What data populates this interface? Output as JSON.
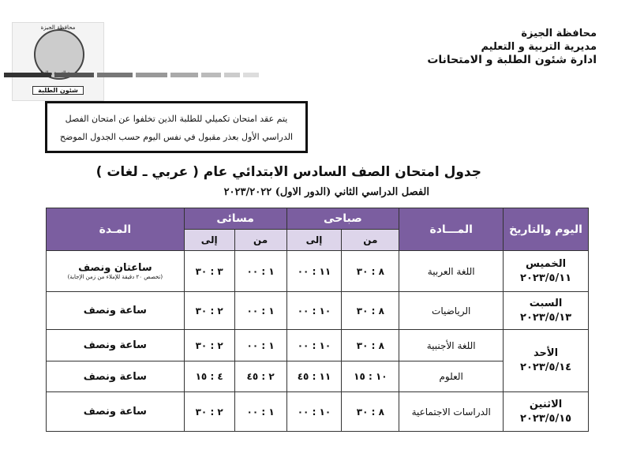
{
  "header": {
    "line1": "محافظة الجيزة",
    "line2": "مديرية التربية و التعليم",
    "line3": "ادارة شئون الطلبة و الامتحانات"
  },
  "logo": {
    "top": "محافظة الجيزة",
    "middle": "مديرية التربية و التعليم",
    "bottom": "شئون الطلبة"
  },
  "notice": {
    "line1": "يتم عقد امتحان تكميلي للطلبة الذين تخلفوا عن امتحان الفصل",
    "line2": "الدراسي الأول بعذر مقبول في نفس اليوم حسب الجدول الموضح"
  },
  "title": "جدول امتحان الصف السادس الابتدائي عام ( عربي ـ لغات )",
  "subtitle": "الفصل الدراسي الثاني (الدور الاول) ٢٠٢٣/٢٠٢٢",
  "table": {
    "headers": {
      "day": "اليوم والتاريخ",
      "subject": "المـــادة",
      "morning": "صباحى",
      "evening": "مسائى",
      "from": "من",
      "to": "إلى",
      "duration": "المـدة"
    },
    "header_color": "#7b5ea0",
    "subheader_color": "#ddd5ea",
    "days": [
      {
        "name": "الخميس",
        "date": "٢٠٢٣/٥/١١"
      },
      {
        "name": "السبت",
        "date": "٢٠٢٣/٥/١٣"
      },
      {
        "name": "الأحد",
        "date": "٢٠٢٣/٥/١٤"
      },
      {
        "name": "الاثنين",
        "date": "٢٠٢٣/٥/١٥"
      }
    ],
    "rows": [
      {
        "subject": "اللغة العربية",
        "m_from": "٨ : ٣٠",
        "m_to": "١١ : ٠٠",
        "e_from": "١ : ٠٠",
        "e_to": "٣ : ٣٠",
        "duration": "ساعتان ونصف",
        "note": "(تخصص ٢٠ دقيقة للإملاء من زمن الإجابة)"
      },
      {
        "subject": "الرياضيات",
        "m_from": "٨ : ٣٠",
        "m_to": "١٠ : ٠٠",
        "e_from": "١ : ٠٠",
        "e_to": "٢ : ٣٠",
        "duration": "ساعة ونصف"
      },
      {
        "subject": "اللغة الأجنبية",
        "m_from": "٨ : ٣٠",
        "m_to": "١٠ : ٠٠",
        "e_from": "١ : ٠٠",
        "e_to": "٢ : ٣٠",
        "duration": "ساعة ونصف"
      },
      {
        "subject": "العلوم",
        "m_from": "١٠ : ١٥",
        "m_to": "١١ : ٤٥",
        "e_from": "٢ : ٤٥",
        "e_to": "٤ : ١٥",
        "duration": "ساعة ونصف"
      },
      {
        "subject": "الدراسات الاجتماعية",
        "m_from": "٨ : ٣٠",
        "m_to": "١٠ : ٠٠",
        "e_from": "١ : ٠٠",
        "e_to": "٢ : ٣٠",
        "duration": "ساعة ونصف"
      }
    ]
  }
}
